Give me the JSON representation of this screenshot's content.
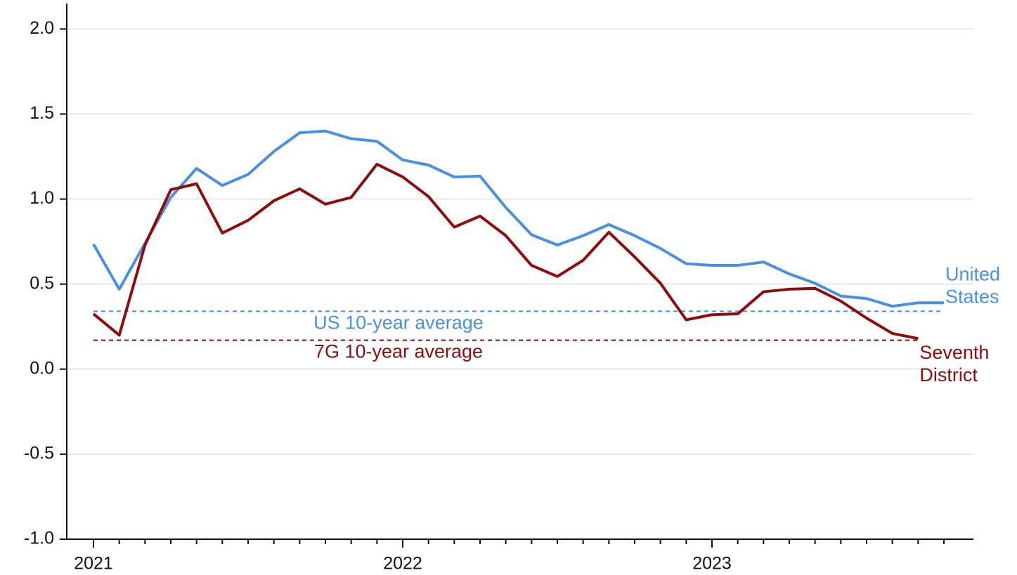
{
  "chart_data": {
    "type": "line",
    "categories": [
      "2021",
      null,
      null,
      null,
      null,
      null,
      null,
      null,
      null,
      null,
      null,
      null,
      "2022",
      null,
      null,
      null,
      null,
      null,
      null,
      null,
      null,
      null,
      null,
      null,
      "2023",
      null,
      null,
      null,
      null,
      null,
      null,
      null,
      null,
      null
    ],
    "series": [
      {
        "name": "United States",
        "color": "#4a90e2",
        "values": [
          0.735,
          0.47,
          0.74,
          1.01,
          1.18,
          1.08,
          1.145,
          1.28,
          1.39,
          1.4,
          1.355,
          1.34,
          1.23,
          1.2,
          1.13,
          1.135,
          0.95,
          0.79,
          0.73,
          0.785,
          0.85,
          0.785,
          0.71,
          0.62,
          0.61,
          0.61,
          0.63,
          0.56,
          0.505,
          0.43,
          0.415,
          0.37,
          0.39,
          0.39
        ]
      },
      {
        "name": "Seventh District",
        "color": "#8f0c0c",
        "values": [
          0.325,
          0.2,
          0.73,
          1.055,
          1.09,
          0.8,
          0.875,
          0.99,
          1.06,
          0.97,
          1.01,
          1.205,
          1.13,
          1.015,
          0.835,
          0.9,
          0.785,
          0.61,
          0.545,
          0.64,
          0.805,
          0.66,
          0.505,
          0.29,
          0.32,
          0.325,
          0.455,
          0.47,
          0.475,
          0.4,
          0.3,
          0.21,
          0.18,
          null
        ]
      }
    ],
    "reference_lines": [
      {
        "label": "US 10-year average",
        "value": 0.34,
        "color": "#4a90e2"
      },
      {
        "label": "7G 10-year average",
        "value": 0.17,
        "color": "#8f0c0c"
      }
    ],
    "ylim": [
      -1,
      2.15
    ],
    "yticks": [
      {
        "value": -1,
        "label": "-1.0"
      },
      {
        "value": -0.5,
        "label": "-0.5"
      },
      {
        "value": 0,
        "label": "0.0"
      },
      0.5,
      {
        "value": 1,
        "label": "1.0"
      },
      1.5,
      {
        "value": 2,
        "label": "2.0"
      }
    ],
    "grid": true
  }
}
